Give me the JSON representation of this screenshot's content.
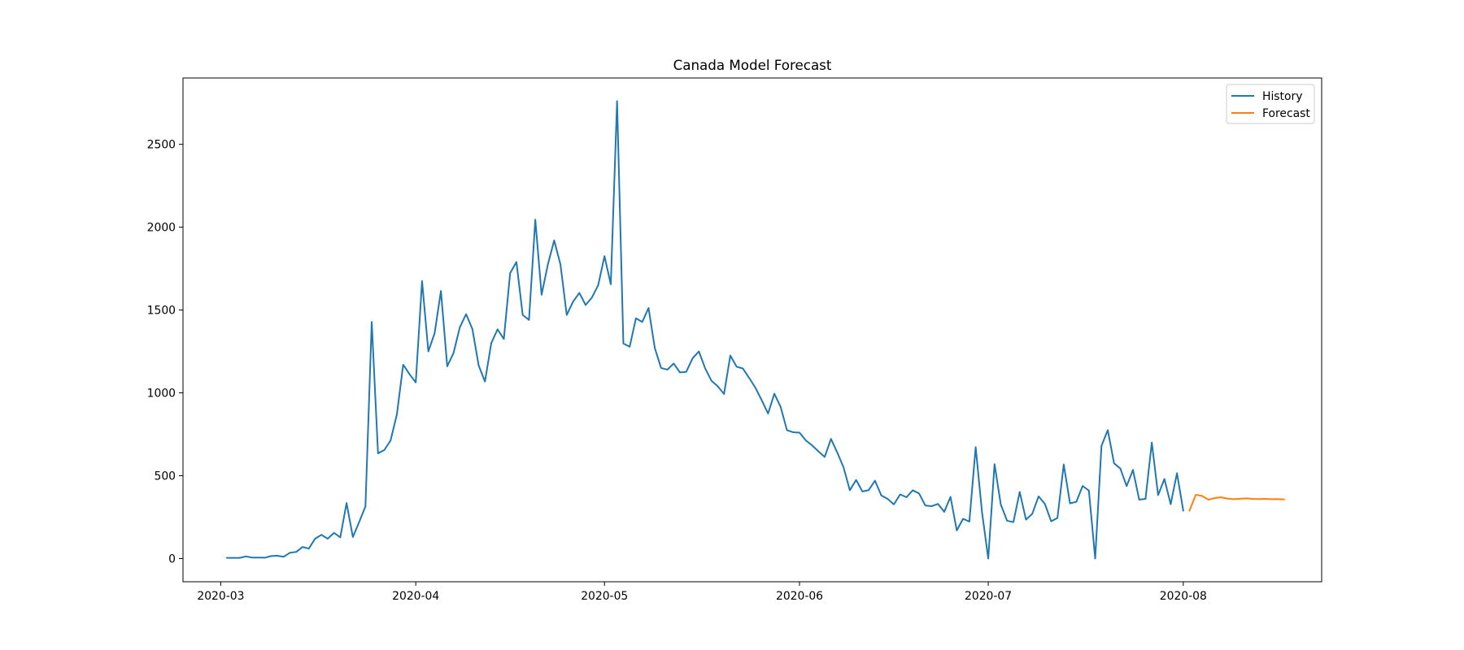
{
  "chart_data": {
    "type": "line",
    "title": "Canada Model Forecast",
    "xlabel": "",
    "ylabel": "",
    "x_type": "date",
    "xlim": [
      "2020-02-24",
      "2020-08-23"
    ],
    "ylim": [
      -140,
      2900
    ],
    "x_ticks": [
      "2020-03-01",
      "2020-04-01",
      "2020-05-01",
      "2020-06-01",
      "2020-07-01",
      "2020-08-01"
    ],
    "x_tick_labels": [
      "2020-03",
      "2020-04",
      "2020-05",
      "2020-06",
      "2020-07",
      "2020-08"
    ],
    "y_ticks": [
      0,
      500,
      1000,
      1500,
      2000,
      2500
    ],
    "y_tick_labels": [
      "0",
      "500",
      "1000",
      "1500",
      "2000",
      "2500"
    ],
    "grid": false,
    "legend_position": "top-right",
    "series": [
      {
        "name": "History",
        "color": "#1f77b4",
        "start": "2020-03-02",
        "values": [
          4,
          4,
          4,
          13,
          6,
          6,
          5,
          15,
          17,
          11,
          35,
          40,
          70,
          60,
          120,
          143,
          120,
          155,
          128,
          335,
          130,
          220,
          315,
          1428,
          635,
          655,
          713,
          870,
          1170,
          1113,
          1063,
          1675,
          1250,
          1360,
          1615,
          1160,
          1240,
          1395,
          1475,
          1385,
          1165,
          1068,
          1300,
          1383,
          1325,
          1722,
          1790,
          1470,
          1440,
          2045,
          1592,
          1775,
          1920,
          1775,
          1470,
          1550,
          1603,
          1530,
          1575,
          1650,
          1825,
          1655,
          2760,
          1298,
          1278,
          1450,
          1428,
          1512,
          1270,
          1150,
          1140,
          1177,
          1123,
          1127,
          1208,
          1250,
          1148,
          1073,
          1040,
          993,
          1225,
          1158,
          1147,
          1090,
          1030,
          955,
          875,
          995,
          915,
          775,
          762,
          760,
          713,
          683,
          647,
          613,
          722,
          640,
          550,
          412,
          474,
          405,
          413,
          470,
          381,
          360,
          327,
          387,
          370,
          412,
          393,
          320,
          316,
          330,
          282,
          372,
          170,
          240,
          223,
          672,
          283,
          0,
          570,
          325,
          228,
          220,
          402,
          235,
          270,
          375,
          330,
          225,
          245,
          568,
          333,
          342,
          438,
          410,
          0,
          680,
          775,
          575,
          543,
          437,
          535,
          355,
          360,
          700,
          383,
          480,
          328,
          515,
          290
        ]
      },
      {
        "name": "Forecast",
        "color": "#ff7f0e",
        "start": "2020-08-02",
        "values": [
          290,
          385,
          378,
          355,
          365,
          370,
          362,
          358,
          361,
          363,
          360,
          359,
          360,
          358,
          359,
          357
        ]
      }
    ]
  }
}
